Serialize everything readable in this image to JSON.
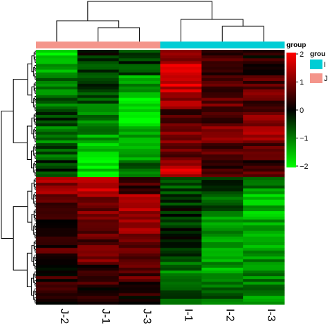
{
  "chart_data": {
    "type": "heatmap",
    "columns": [
      "J-2",
      "J-1",
      "J-3",
      "I-1",
      "I-2",
      "I-3"
    ],
    "column_groups": [
      "J",
      "J",
      "J",
      "I",
      "I",
      "I"
    ],
    "row_count": 90,
    "colorbar": {
      "title": "group",
      "min": -2,
      "max": 2,
      "ticks": [
        "2",
        "1",
        "0",
        "−1",
        "−2"
      ],
      "tick_values": [
        2,
        1,
        0,
        -1,
        -2
      ],
      "colors": {
        "low": "#00ff00",
        "mid": "#000000",
        "high": "#ff0000"
      }
    },
    "group_legend": {
      "title": "grou",
      "items": [
        {
          "label": "I",
          "color": "#00cdd5"
        },
        {
          "label": "J",
          "color": "#f4958b"
        }
      ]
    },
    "group_colors": {
      "J": "#f4958b",
      "I": "#00cdd5"
    },
    "blocks": [
      {
        "rows": [
          0,
          4
        ],
        "values": [
          -1.6,
          -0.2,
          -0.4,
          1.3,
          0.4,
          0.2
        ]
      },
      {
        "rows": [
          4,
          9
        ],
        "values": [
          -1.2,
          -0.6,
          -0.5,
          1.5,
          0.5,
          0.3
        ]
      },
      {
        "rows": [
          9,
          15
        ],
        "values": [
          -1.0,
          -0.4,
          -1.2,
          1.6,
          0.5,
          0.6
        ]
      },
      {
        "rows": [
          15,
          21
        ],
        "values": [
          -0.8,
          -0.7,
          -1.6,
          1.2,
          0.8,
          0.7
        ]
      },
      {
        "rows": [
          21,
          27
        ],
        "values": [
          -0.3,
          -0.9,
          -1.8,
          0.6,
          0.7,
          0.9
        ]
      },
      {
        "rows": [
          27,
          33
        ],
        "values": [
          -0.9,
          -1.2,
          -1.5,
          0.8,
          0.9,
          1.2
        ]
      },
      {
        "rows": [
          33,
          39
        ],
        "values": [
          -0.7,
          -1.5,
          -1.1,
          0.7,
          0.6,
          0.8
        ]
      },
      {
        "rows": [
          39,
          45
        ],
        "values": [
          -0.4,
          -1.8,
          -0.8,
          1.5,
          0.4,
          0.5
        ]
      },
      {
        "rows": [
          45,
          51
        ],
        "values": [
          1.1,
          1.4,
          0.5,
          -0.6,
          -0.2,
          -1.0
        ]
      },
      {
        "rows": [
          51,
          57
        ],
        "values": [
          0.8,
          1.0,
          1.3,
          -0.3,
          -0.8,
          -1.4
        ]
      },
      {
        "rows": [
          57,
          63
        ],
        "values": [
          0.4,
          0.9,
          1.4,
          -0.4,
          -1.1,
          -1.4
        ]
      },
      {
        "rows": [
          63,
          69
        ],
        "values": [
          0.2,
          0.7,
          1.1,
          -0.1,
          -1.0,
          -1.3
        ]
      },
      {
        "rows": [
          69,
          75
        ],
        "values": [
          0.5,
          0.8,
          0.6,
          -0.3,
          -1.3,
          -1.2
        ]
      },
      {
        "rows": [
          75,
          82
        ],
        "values": [
          0.3,
          0.5,
          0.7,
          -1.0,
          -1.2,
          -0.9
        ]
      },
      {
        "rows": [
          82,
          90
        ],
        "values": [
          0.2,
          0.4,
          0.3,
          -0.6,
          -0.9,
          -1.1
        ]
      }
    ]
  }
}
